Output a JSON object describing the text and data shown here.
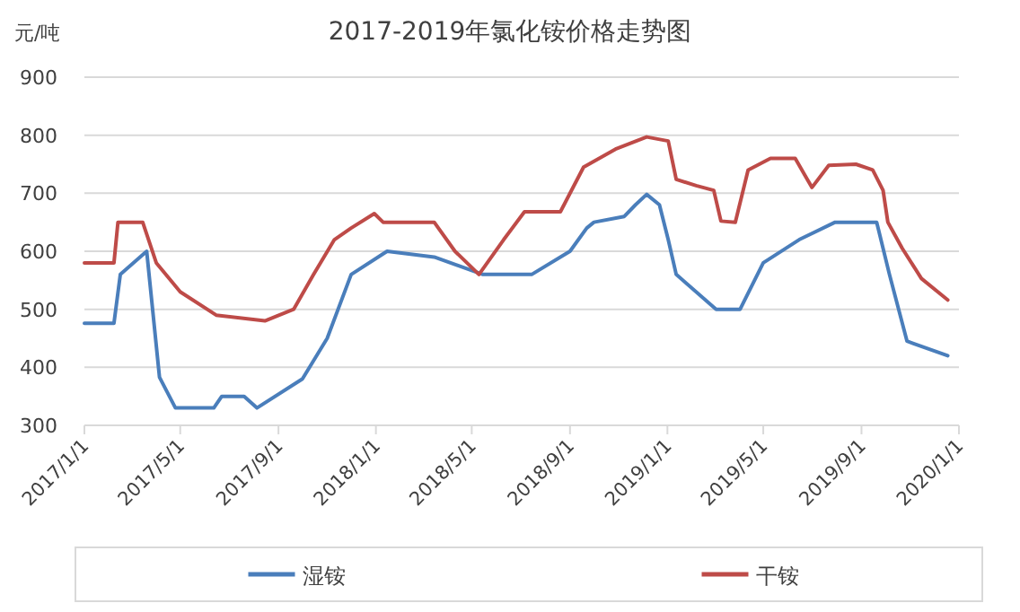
{
  "chart_data": {
    "type": "line",
    "title": "2017-2019年氯化铵价格走势图",
    "ylabel": "元/吨",
    "xlim": [
      "2017-01-01",
      "2020-01-01"
    ],
    "xticks": [
      {
        "value": "2017-01-01",
        "label": "2017/1/1"
      },
      {
        "value": "2017-05-01",
        "label": "2017/5/1"
      },
      {
        "value": "2017-09-01",
        "label": "2017/9/1"
      },
      {
        "value": "2018-01-01",
        "label": "2018/1/1"
      },
      {
        "value": "2018-05-01",
        "label": "2018/5/1"
      },
      {
        "value": "2018-09-01",
        "label": "2018/9/1"
      },
      {
        "value": "2019-01-01",
        "label": "2019/1/1"
      },
      {
        "value": "2019-05-01",
        "label": "2019/5/1"
      },
      {
        "value": "2019-09-01",
        "label": "2019/9/1"
      },
      {
        "value": "2020-01-01",
        "label": "2020/1/1"
      }
    ],
    "ylim": [
      300,
      900
    ],
    "yticks": [
      300,
      400,
      500,
      600,
      700,
      800,
      900
    ],
    "grid": "y",
    "legend": "bottom",
    "series": [
      {
        "name": "湿铵",
        "color": "#4a7ebb",
        "x": [
          "2017-01-01",
          "2017-02-07",
          "2017-02-15",
          "2017-03-20",
          "2017-04-05",
          "2017-04-25",
          "2017-06-12",
          "2017-06-22",
          "2017-07-20",
          "2017-08-05",
          "2017-10-01",
          "2017-11-01",
          "2017-12-01",
          "2018-01-15",
          "2018-03-15",
          "2018-05-15",
          "2018-07-15",
          "2018-09-01",
          "2018-09-22",
          "2018-10-01",
          "2018-11-08",
          "2018-11-22",
          "2018-12-06",
          "2018-12-22",
          "2019-01-02",
          "2019-01-12",
          "2019-03-03",
          "2019-04-02",
          "2019-05-01",
          "2019-06-15",
          "2019-07-30",
          "2019-09-20",
          "2019-10-06",
          "2019-10-28",
          "2019-12-18"
        ],
        "values": [
          476,
          476,
          560,
          600,
          383,
          330,
          330,
          350,
          350,
          330,
          380,
          450,
          560,
          600,
          590,
          560,
          560,
          600,
          640,
          650,
          660,
          680,
          698,
          680,
          620,
          560,
          500,
          500,
          580,
          620,
          650,
          650,
          560,
          445,
          420
        ]
      },
      {
        "name": "干铵",
        "color": "#be4b48",
        "x": [
          "2017-01-01",
          "2017-02-07",
          "2017-02-12",
          "2017-03-15",
          "2017-04-01",
          "2017-05-01",
          "2017-06-15",
          "2017-08-15",
          "2017-09-20",
          "2017-10-15",
          "2017-11-10",
          "2017-12-01",
          "2017-12-30",
          "2018-01-10",
          "2018-03-15",
          "2018-04-10",
          "2018-05-10",
          "2018-06-10",
          "2018-07-06",
          "2018-08-20",
          "2018-09-18",
          "2018-10-28",
          "2018-12-06",
          "2019-01-02",
          "2019-01-12",
          "2019-02-06",
          "2019-02-28",
          "2019-03-09",
          "2019-03-27",
          "2019-04-12",
          "2019-05-10",
          "2019-06-10",
          "2019-06-25",
          "2019-07-01",
          "2019-07-22",
          "2019-08-25",
          "2019-09-15",
          "2019-09-28",
          "2019-10-04",
          "2019-10-22",
          "2019-11-15",
          "2019-12-18"
        ],
        "values": [
          580,
          580,
          650,
          650,
          580,
          530,
          490,
          480,
          500,
          560,
          620,
          640,
          665,
          650,
          650,
          600,
          560,
          620,
          668,
          668,
          745,
          776,
          797,
          790,
          724,
          713,
          705,
          652,
          650,
          740,
          760,
          760,
          724,
          710,
          748,
          750,
          740,
          705,
          650,
          605,
          553,
          516
        ]
      }
    ]
  }
}
